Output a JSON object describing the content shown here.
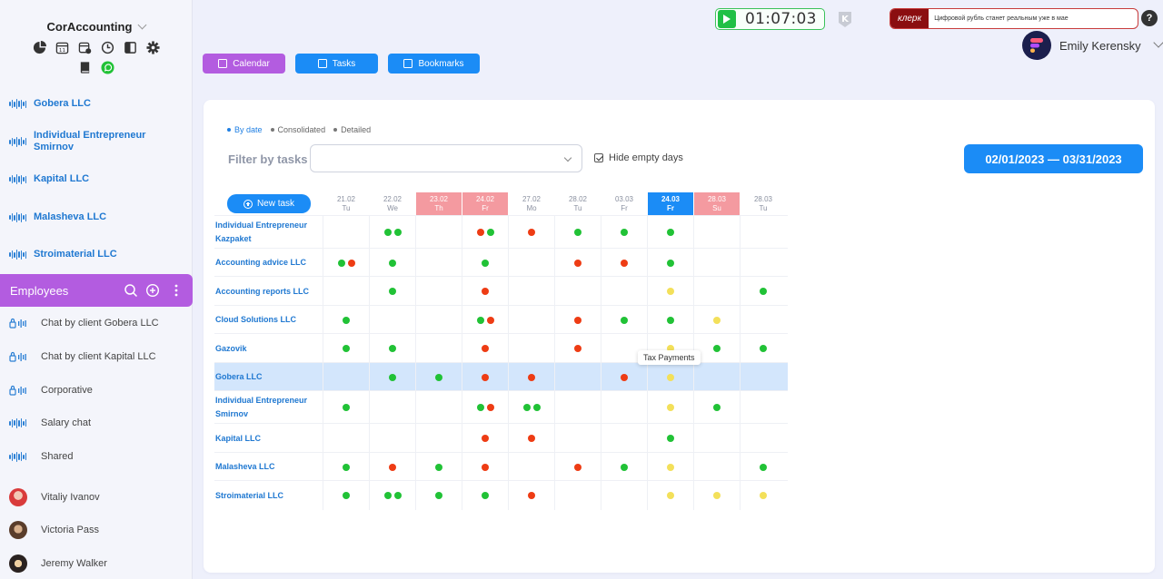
{
  "sidebar": {
    "brand": "CorAccounting",
    "tools_row1": [
      "chart-pie-icon",
      "calendar-icon",
      "calendar-settings-icon",
      "clock-icon",
      "layout-icon",
      "gear-icon"
    ],
    "tools_row2": [
      "book-icon",
      "whatsapp-icon"
    ],
    "clients": [
      {
        "label": "Gobera LLC"
      },
      {
        "label": "Individual Entrepreneur Smirnov"
      },
      {
        "label": "Kapital LLC"
      },
      {
        "label": "Malasheva LLC"
      },
      {
        "label": "Stroimaterial LLC"
      }
    ],
    "employees_label": "Employees",
    "chats": [
      {
        "label": "Chat by client Gobera LLC",
        "icon": "lock-icon"
      },
      {
        "label": "Chat by client Kapital LLC",
        "icon": "lock-icon"
      },
      {
        "label": "Corporative",
        "icon": "lock-icon"
      },
      {
        "label": "Salary chat",
        "icon": "wave-icon"
      },
      {
        "label": "Shared",
        "icon": "wave-icon"
      }
    ],
    "people": [
      {
        "label": "Vitaliy Ivanov"
      },
      {
        "label": "Victoria Pass"
      },
      {
        "label": "Jeremy Walker"
      }
    ]
  },
  "header": {
    "timer": "01:07:03",
    "news_source": "клерк",
    "news_text": "Цифровой рубль станет реальным уже в мае",
    "help": "?",
    "user_name": "Emily Kerensky"
  },
  "nav": {
    "calendar": "Calendar",
    "tasks": "Tasks",
    "bookmarks": "Bookmarks",
    "colors": {
      "calendar": "#b35ce0",
      "tasks": "#1b8cf6",
      "bookmarks": "#1b8cf6"
    }
  },
  "panel": {
    "modes": [
      "By date",
      "Consolidated",
      "Detailed"
    ],
    "active_mode": "By date",
    "filter_label": "Filter by tasks",
    "filter_value": "",
    "hide_empty_label": "Hide empty days",
    "hide_empty_checked": true,
    "date_range": "02/01/2023 — 03/31/2023",
    "new_task": "New task",
    "tooltip": "Tax Payments",
    "dates": [
      {
        "date": "21.02",
        "day": "Tu",
        "kind": "normal"
      },
      {
        "date": "22.02",
        "day": "We",
        "kind": "normal"
      },
      {
        "date": "23.02",
        "day": "Th",
        "kind": "holiday"
      },
      {
        "date": "24.02",
        "day": "Fr",
        "kind": "holiday"
      },
      {
        "date": "27.02",
        "day": "Mo",
        "kind": "normal"
      },
      {
        "date": "28.02",
        "day": "Tu",
        "kind": "normal"
      },
      {
        "date": "03.03",
        "day": "Fr",
        "kind": "normal"
      },
      {
        "date": "24.03",
        "day": "Fr",
        "kind": "today"
      },
      {
        "date": "28.03",
        "day": "Su",
        "kind": "holiday"
      },
      {
        "date": "28.03",
        "day": "Tu",
        "kind": "normal"
      }
    ],
    "status_colors": {
      "g": "#21c236",
      "r": "#ee3c14",
      "y": "#f3e05a"
    },
    "rows": [
      {
        "label": "Individual Entrepreneur Kazpaket",
        "cells": [
          "",
          "gg",
          "",
          "rg",
          "r",
          "g",
          "g",
          "g",
          "",
          ""
        ]
      },
      {
        "label": "Accounting advice LLC",
        "cells": [
          "gr",
          "g",
          "",
          "g",
          "",
          "r",
          "r",
          "g",
          "",
          ""
        ]
      },
      {
        "label": "Accounting reports LLC",
        "cells": [
          "",
          "g",
          "",
          "r",
          "",
          "",
          "",
          "y",
          "",
          "g"
        ]
      },
      {
        "label": "Cloud Solutions LLC",
        "cells": [
          "g",
          "",
          "",
          "gr",
          "",
          "r",
          "g",
          "g",
          "y",
          ""
        ]
      },
      {
        "label": "Gazovik",
        "cells": [
          "g",
          "g",
          "",
          "r",
          "",
          "r",
          "",
          "y",
          "g",
          "g"
        ]
      },
      {
        "label": "Gobera LLC",
        "selected": true,
        "cells": [
          "",
          "g",
          "g",
          "r",
          "r",
          "",
          "r",
          "y",
          "",
          ""
        ]
      },
      {
        "label": "Individual Entrepreneur Smirnov",
        "cells": [
          "g",
          "",
          "",
          "gr",
          "gg",
          "",
          "",
          "y",
          "g",
          ""
        ]
      },
      {
        "label": "Kapital LLC",
        "cells": [
          "",
          "",
          "",
          "r",
          "r",
          "",
          "",
          "g",
          "",
          ""
        ]
      },
      {
        "label": "Malasheva LLC",
        "cells": [
          "g",
          "r",
          "g",
          "r",
          "",
          "r",
          "g",
          "y",
          "",
          "g"
        ]
      },
      {
        "label": "Stroimaterial LLC",
        "cells": [
          "g",
          "gg",
          "g",
          "g",
          "r",
          "",
          "",
          "y",
          "y",
          "y"
        ]
      }
    ]
  }
}
